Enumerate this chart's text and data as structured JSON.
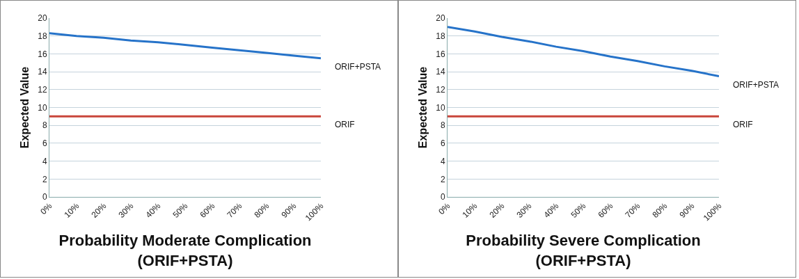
{
  "chart_data": [
    {
      "type": "line",
      "xlabel": "Probability Moderate Complication\n(ORIF+PSTA)",
      "ylabel": "Expected Value",
      "categories": [
        "0%",
        "10%",
        "20%",
        "30%",
        "40%",
        "50%",
        "60%",
        "70%",
        "80%",
        "90%",
        "100%"
      ],
      "series": [
        {
          "name": "ORIF+PSTA",
          "color": "#2673c9",
          "values": [
            18.3,
            18.0,
            17.8,
            17.5,
            17.3,
            17.0,
            16.7,
            16.4,
            16.1,
            15.8,
            15.5
          ]
        },
        {
          "name": "ORIF",
          "color": "#c9463b",
          "values": [
            9,
            9,
            9,
            9,
            9,
            9,
            9,
            9,
            9,
            9,
            9
          ]
        }
      ],
      "ylim": [
        0,
        20
      ],
      "yticks": [
        0,
        2,
        4,
        6,
        8,
        10,
        12,
        14,
        16,
        18,
        20
      ],
      "grid": "y",
      "legend": false,
      "marker": "none",
      "line_style": "solid"
    },
    {
      "type": "line",
      "xlabel": "Probability Severe Complication\n(ORIF+PSTA)",
      "ylabel": "Expected Value",
      "categories": [
        "0%",
        "10%",
        "20%",
        "30%",
        "40%",
        "50%",
        "60%",
        "70%",
        "80%",
        "90%",
        "100%"
      ],
      "series": [
        {
          "name": "ORIF+PSTA",
          "color": "#2673c9",
          "values": [
            19.0,
            18.5,
            17.9,
            17.4,
            16.8,
            16.3,
            15.7,
            15.2,
            14.6,
            14.1,
            13.5
          ]
        },
        {
          "name": "ORIF",
          "color": "#c9463b",
          "values": [
            9,
            9,
            9,
            9,
            9,
            9,
            9,
            9,
            9,
            9,
            9
          ]
        }
      ],
      "ylim": [
        0,
        20
      ],
      "yticks": [
        0,
        2,
        4,
        6,
        8,
        10,
        12,
        14,
        16,
        18,
        20
      ],
      "grid": "y",
      "legend": false,
      "marker": "none",
      "line_style": "solid"
    }
  ]
}
